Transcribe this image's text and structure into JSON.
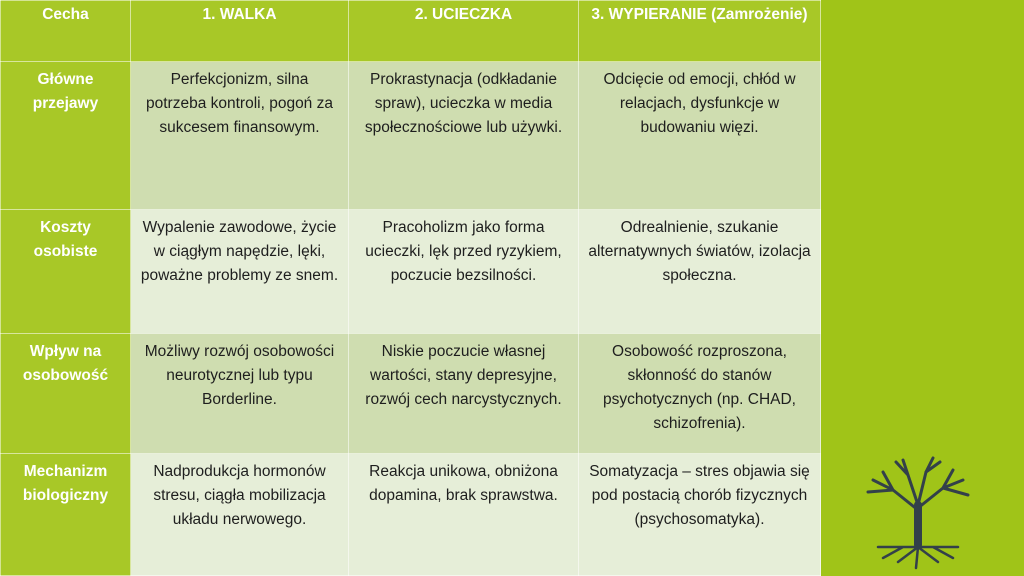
{
  "headers": [
    "Cecha",
    "1. WALKA",
    "2. UCIECZKA",
    "3. WYPIERANIE (Zamrożenie)"
  ],
  "rows": [
    {
      "feature": "Główne przejawy",
      "cells": [
        "Perfekcjonizm, silna potrzeba kontroli, pogoń za sukcesem finansowym.",
        "Prokrastynacja (odkładanie spraw), ucieczka w media społecznościowe lub używki.",
        "Odcięcie od emocji, chłód w relacjach, dysfunkcje w budowaniu więzi."
      ]
    },
    {
      "feature": "Koszty osobiste",
      "cells": [
        "Wypalenie zawodowe, życie w ciągłym napędzie, lęki, poważne problemy ze snem.",
        "Pracoholizm jako forma ucieczki, lęk przed ryzykiem, poczucie bezsilności.",
        "Odrealnienie, szukanie alternatywnych światów, izolacja społeczna."
      ]
    },
    {
      "feature": "Wpływ na osobowość",
      "cells": [
        "Możliwy rozwój osobowości neurotycznej lub typu Borderline.",
        "Niskie poczucie własnej wartości, stany depresyjne, rozwój cech narcystycznych.",
        "Osobowość rozproszona, skłonność do stanów psychotycznych (np. CHAD, schizofrenia)."
      ]
    },
    {
      "feature": "Mechanizm biologiczny",
      "cells": [
        "Nadprodukcja hormonów stresu, ciągła mobilizacja układu nerwowego.",
        "Reakcja unikowa, obniżona dopamina, brak sprawstwa.",
        "Somatyzacja – stres objawia się pod postacią chorób fizycznych (psychosomatyka)."
      ]
    }
  ],
  "colors": {
    "background": "#a0c418",
    "header": "#a8c827",
    "row_dark": "#cfddb0",
    "row_light": "#e6eed8",
    "tree": "#33404a"
  },
  "icons": {
    "logo": "tree-icon"
  }
}
